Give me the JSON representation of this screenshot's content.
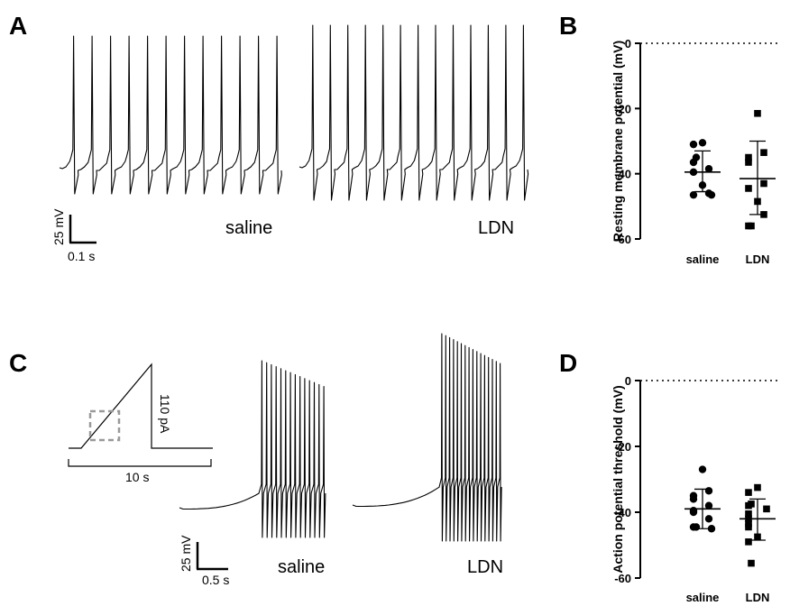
{
  "panels": {
    "A": {
      "label": "A",
      "traces": [
        {
          "label": "saline",
          "spikes": 12
        },
        {
          "label": "LDN",
          "spikes": 13
        }
      ],
      "scalebar": {
        "y_label": "25 mV",
        "x_label": "0.1 s"
      }
    },
    "B": {
      "label": "B"
    },
    "C": {
      "label": "C",
      "protocol": {
        "amplitude_label": "110 pA",
        "duration_label": "10 s"
      },
      "traces": [
        {
          "label": "saline",
          "spikes": 14
        },
        {
          "label": "LDN",
          "spikes": 16
        }
      ],
      "scalebar": {
        "y_label": "25 mV",
        "x_label": "0.5 s"
      }
    },
    "D": {
      "label": "D"
    }
  },
  "chart_data": [
    {
      "panel": "B",
      "type": "scatter",
      "ylabel": "Resting membrane potential (mV)",
      "categories": [
        "saline",
        "LDN"
      ],
      "ylim": [
        -60,
        0
      ],
      "yticks": [
        0,
        -20,
        -40,
        -60
      ],
      "reference_line": 0,
      "series": [
        {
          "name": "saline",
          "marker": "circle",
          "values": [
            -30.5,
            -31,
            -35,
            -36.5,
            -38.5,
            -39.5,
            -43.5,
            -46,
            -46.5,
            -46.5
          ],
          "mean": -39.5,
          "sd_upper": -33,
          "sd_lower": -45.5
        },
        {
          "name": "LDN",
          "marker": "square",
          "values": [
            -21.5,
            -33.5,
            -35,
            -36.5,
            -43,
            -44.5,
            -48.5,
            -52.5,
            -56,
            -56
          ],
          "mean": -41.5,
          "sd_upper": -30,
          "sd_lower": -52.5
        }
      ]
    },
    {
      "panel": "D",
      "type": "scatter",
      "ylabel": "Action potential threshold (mV)",
      "categories": [
        "saline",
        "LDN"
      ],
      "ylim": [
        -60,
        0
      ],
      "yticks": [
        0,
        -20,
        -40,
        -60
      ],
      "reference_line": 0,
      "series": [
        {
          "name": "saline",
          "marker": "circle",
          "values": [
            -27,
            -33.5,
            -35,
            -36,
            -38,
            -39.5,
            -40,
            -42,
            -44.5,
            -44.5,
            -45
          ],
          "mean": -39,
          "sd_upper": -33,
          "sd_lower": -45
        },
        {
          "name": "LDN",
          "marker": "square",
          "values": [
            -32.5,
            -34,
            -37.5,
            -38,
            -39,
            -40.5,
            -42,
            -43.5,
            -44.5,
            -47.5,
            -49,
            -55.5
          ],
          "mean": -42,
          "sd_upper": -36,
          "sd_lower": -48.5
        }
      ]
    }
  ]
}
